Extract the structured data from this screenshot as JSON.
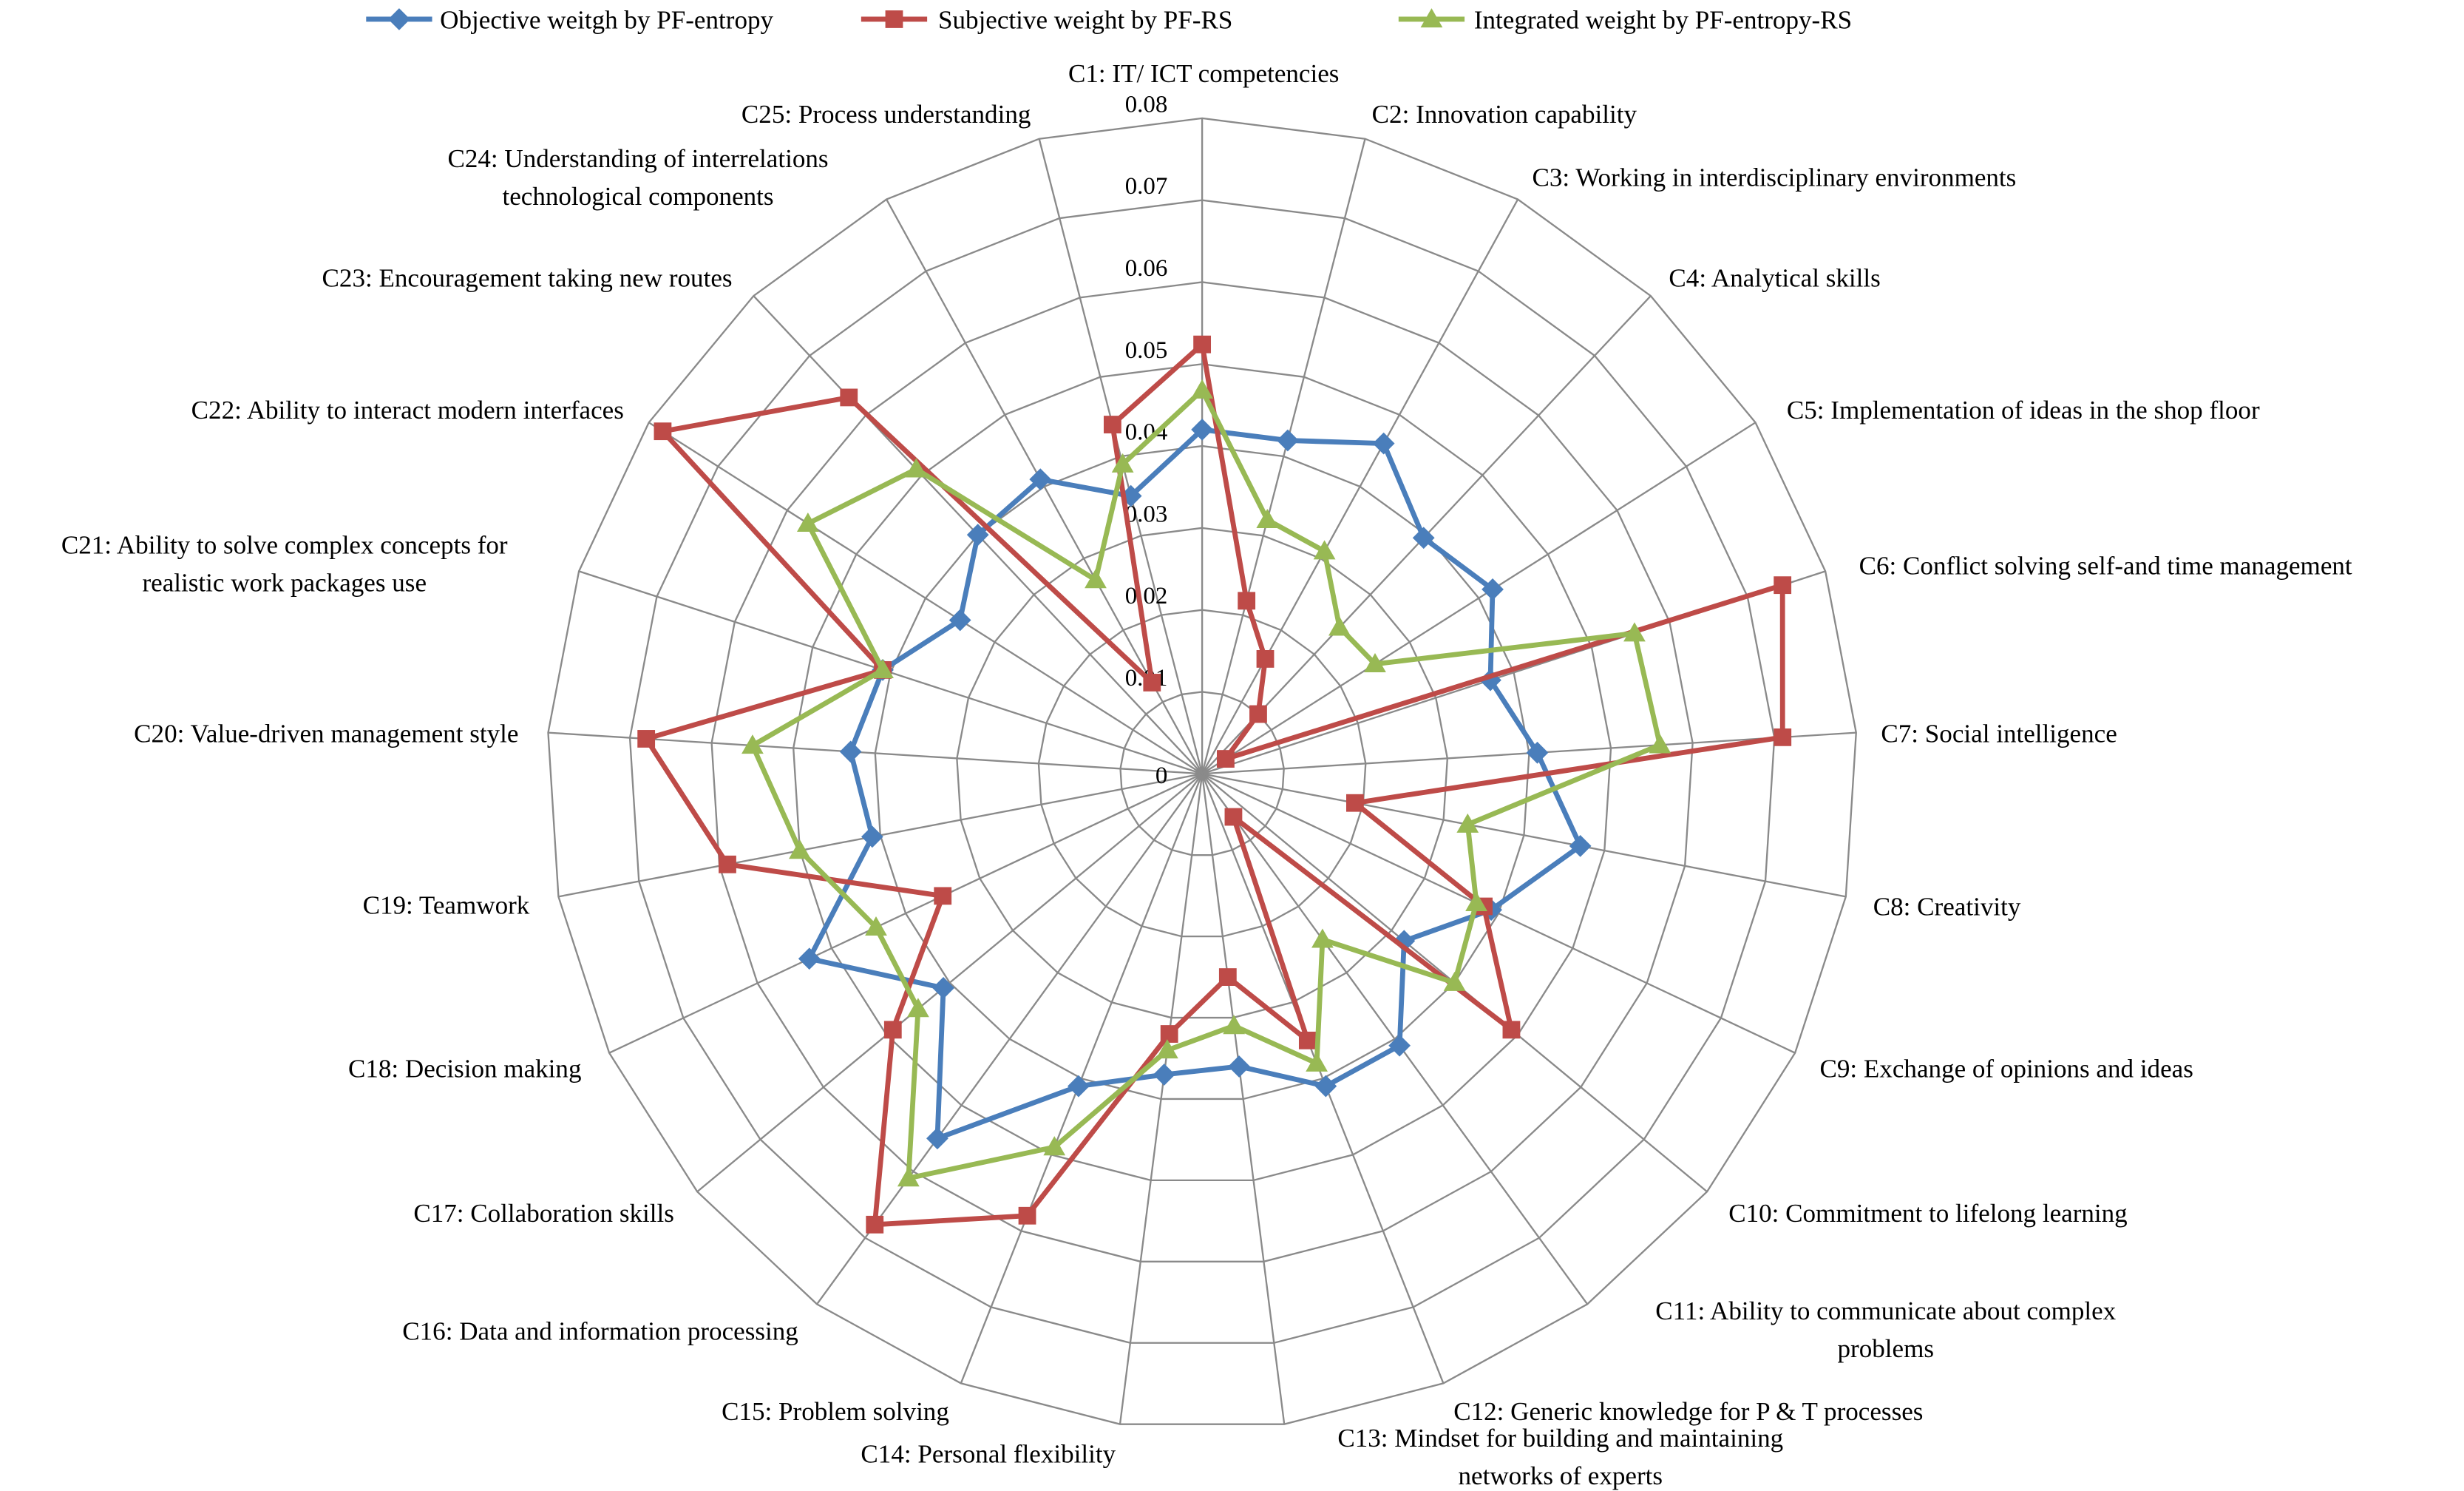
{
  "chart_data": {
    "type": "radar",
    "title": "",
    "categories": [
      "C1: IT/ ICT competencies",
      "C2: Innovation capability",
      "C3: Working in interdisciplinary environments",
      "C4: Analytical skills",
      "C5: Implementation of ideas in the shop floor",
      "C6: Conflict solving self-and time management",
      "C7: Social intelligence",
      "C8: Creativity",
      "C9: Exchange of opinions and ideas",
      "C10: Commitment to lifelong learning",
      [
        "C11: Ability to communicate about complex",
        "problems"
      ],
      "C12: Generic knowledge for P & T processes",
      [
        "C13: Mindset for building and maintaining",
        "networks of experts"
      ],
      "C14: Personal flexibility",
      "C15: Problem solving",
      "C16: Data and information processing",
      "C17: Collaboration skills",
      "C18: Decision making",
      "C19: Teamwork",
      "C20: Value-driven management style",
      [
        "C21: Ability to solve complex concepts for",
        "realistic work packages use"
      ],
      "C22: Ability to interact modern interfaces",
      "C23: Encouragement taking new routes",
      [
        "C24: Understanding of interrelations",
        "technological components"
      ],
      "C25: Process understanding"
    ],
    "rlim": [
      0,
      0.08
    ],
    "ticks": [
      "0",
      "0.01",
      "0.02",
      "0.03",
      "0.04",
      "0.05",
      "0.06",
      "0.07",
      "0.08"
    ],
    "grid": true,
    "legend_position": "top",
    "series": [
      {
        "name": "Objective weitgh by PF-entropy",
        "color": "#4a7ebb",
        "marker": "diamond",
        "values": [
          0.042,
          0.042,
          0.046,
          0.0395,
          0.042,
          0.037,
          0.041,
          0.047,
          0.039,
          0.032,
          0.041,
          0.041,
          0.036,
          0.037,
          0.041,
          0.055,
          0.041,
          0.053,
          0.041,
          0.043,
          0.041,
          0.035,
          0.04,
          0.041,
          0.035
        ]
      },
      {
        "name": "Subjective weight by PF-RS",
        "color": "#be4b48",
        "marker": "square",
        "values": [
          0.0524,
          0.0218,
          0.016,
          0.01,
          0.0034,
          0.0745,
          0.071,
          0.019,
          0.038,
          0.049,
          0.0065,
          0.035,
          0.025,
          0.032,
          0.058,
          0.068,
          0.049,
          0.035,
          0.059,
          0.068,
          0.041,
          0.078,
          0.063,
          0.0127,
          0.044
        ]
      },
      {
        "name": "Integrated weight by PF-entropy-RS",
        "color": "#98b954",
        "marker": "triangle",
        "values": [
          0.0468,
          0.032,
          0.031,
          0.0245,
          0.025,
          0.0555,
          0.056,
          0.033,
          0.037,
          0.04,
          0.025,
          0.038,
          0.031,
          0.034,
          0.049,
          0.061,
          0.045,
          0.044,
          0.05,
          0.055,
          0.041,
          0.057,
          0.051,
          0.027,
          0.039
        ]
      }
    ]
  }
}
